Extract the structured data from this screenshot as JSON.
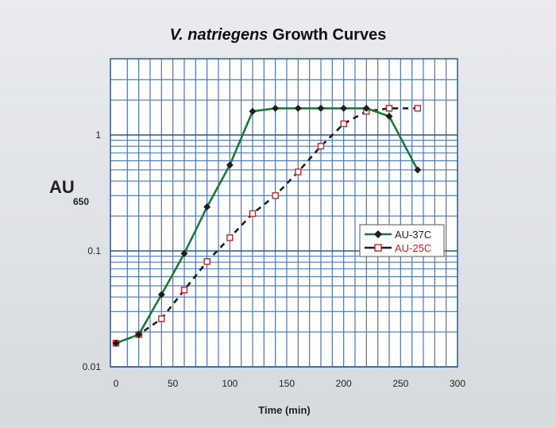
{
  "chart_data": {
    "type": "line",
    "title_italic": "V. natriegens",
    "title_rest": " Growth Curves",
    "xlabel": "Time (min)",
    "ylabel": "AU",
    "ylabel_sub": "650",
    "xlim": [
      0,
      300
    ],
    "ylim": [
      0.01,
      3
    ],
    "y_scale": "log",
    "grid": true,
    "x_ticks": [
      0,
      50,
      100,
      150,
      200,
      250,
      300
    ],
    "y_ticks": [
      {
        "value": 0.01,
        "label": "0.01"
      },
      {
        "value": 0.1,
        "label": "0.1"
      },
      {
        "value": 1,
        "label": "1"
      }
    ],
    "legend_position": "center-right",
    "series": [
      {
        "name": "AU-37C",
        "color": "#1a7a3a",
        "marker_color": "#1e1e1e",
        "marker": "diamond",
        "style": "solid",
        "x": [
          0,
          20,
          40,
          60,
          80,
          100,
          120,
          140,
          160,
          180,
          200,
          220,
          240,
          265
        ],
        "y": [
          0.016,
          0.019,
          0.042,
          0.095,
          0.24,
          0.55,
          1.6,
          1.7,
          1.7,
          1.7,
          1.7,
          1.7,
          1.45,
          0.5
        ]
      },
      {
        "name": "AU-25C",
        "color": "#1e1e1e",
        "marker_color": "#cc2222",
        "marker": "square",
        "style": "dashed",
        "x": [
          0,
          20,
          40,
          60,
          80,
          100,
          120,
          140,
          160,
          180,
          200,
          220,
          240,
          265
        ],
        "y": [
          0.016,
          0.019,
          0.026,
          0.046,
          0.081,
          0.13,
          0.21,
          0.3,
          0.48,
          0.8,
          1.25,
          1.6,
          1.7,
          1.7
        ]
      }
    ]
  }
}
